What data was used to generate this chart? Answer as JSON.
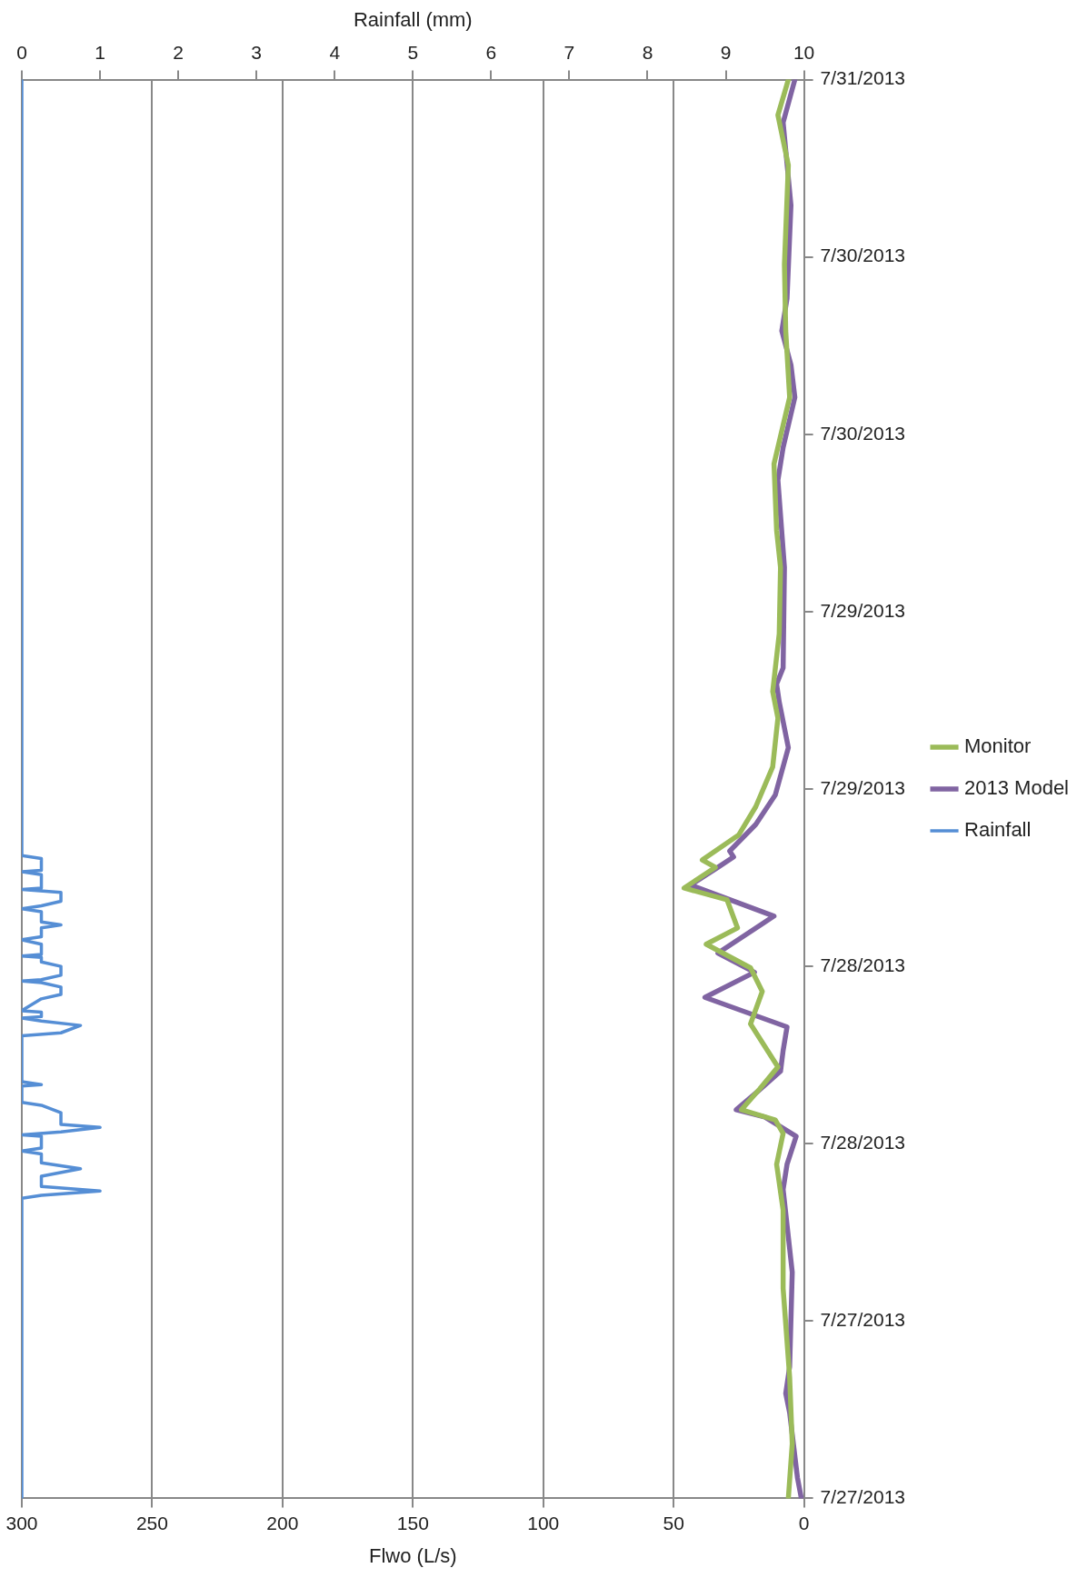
{
  "chart_data": {
    "type": "line",
    "orientation": "horizontal",
    "xlabel": "Flwo (L/s)",
    "x2label": "Rainfall (mm)",
    "ylim": [
      "2013-07-27T00:00",
      "2013-07-31T00:00"
    ],
    "yticks": [
      {
        "value": "2013-07-27T00:00",
        "label": "7/27/2013"
      },
      {
        "value": "2013-07-27T12:00",
        "label": "7/27/2013"
      },
      {
        "value": "2013-07-28T00:00",
        "label": "7/28/2013"
      },
      {
        "value": "2013-07-28T12:00",
        "label": "7/28/2013"
      },
      {
        "value": "2013-07-29T00:00",
        "label": "7/29/2013"
      },
      {
        "value": "2013-07-29T12:00",
        "label": "7/29/2013"
      },
      {
        "value": "2013-07-30T00:00",
        "label": "7/30/2013"
      },
      {
        "value": "2013-07-30T12:00",
        "label": "7/30/2013"
      },
      {
        "value": "2013-07-31T00:00",
        "label": "7/31/2013"
      }
    ],
    "xlim": [
      300,
      0
    ],
    "xticks": [
      300,
      250,
      200,
      150,
      100,
      50,
      0
    ],
    "x2lim": [
      0,
      10
    ],
    "x2ticks": [
      0,
      1,
      2,
      3,
      4,
      5,
      6,
      7,
      8,
      9,
      10
    ],
    "grid": "x",
    "legend": "right",
    "marker": "none",
    "line_style": "solid",
    "series": [
      {
        "name": "Monitor",
        "color": "#9bbb59",
        "x": [
          "2013-07-27T00:00",
          "2013-07-27T03:42",
          "2013-07-27T08:12",
          "2013-07-27T14:12",
          "2013-07-27T19:30",
          "2013-07-27T22:36",
          "2013-07-28T00:42",
          "2013-07-28T01:36",
          "2013-07-28T02:18",
          "2013-07-28T03:42",
          "2013-07-28T05:12",
          "2013-07-28T08:06",
          "2013-07-28T10:18",
          "2013-07-28T11:54",
          "2013-07-28T13:30",
          "2013-07-28T14:36",
          "2013-07-28T16:30",
          "2013-07-28T17:18",
          "2013-07-28T18:42",
          "2013-07-28T19:12",
          "2013-07-28T20:54",
          "2013-07-28T22:48",
          "2013-07-29T01:30",
          "2013-07-29T04:48",
          "2013-07-29T06:36",
          "2013-07-29T10:30",
          "2013-07-29T15:00",
          "2013-07-29T17:30",
          "2013-07-29T22:00",
          "2013-07-30T02:30",
          "2013-07-30T07:00",
          "2013-07-30T11:30",
          "2013-07-30T18:12",
          "2013-07-30T21:36",
          "2013-07-31T00:00"
        ],
        "values": [
          6,
          4.5,
          5.5,
          8,
          8,
          10.5,
          8,
          11,
          24,
          17,
          10,
          20.5,
          16,
          20.5,
          37.5,
          25.5,
          29.5,
          46,
          34,
          39,
          25,
          18.5,
          12,
          10,
          12,
          9.5,
          9,
          10.5,
          11.5,
          5.5,
          7,
          7.5,
          6,
          10,
          6
        ]
      },
      {
        "name": "2013 Model",
        "color": "#8064a2",
        "x": [
          "2013-07-27T00:00",
          "2013-07-27T01:24",
          "2013-07-27T05:48",
          "2013-07-27T07:06",
          "2013-07-27T08:54",
          "2013-07-27T15:18",
          "2013-07-27T20:54",
          "2013-07-27T22:36",
          "2013-07-28T00:30",
          "2013-07-28T01:48",
          "2013-07-28T02:18",
          "2013-07-28T03:30",
          "2013-07-28T04:54",
          "2013-07-28T06:18",
          "2013-07-28T07:54",
          "2013-07-28T09:54",
          "2013-07-28T11:36",
          "2013-07-28T12:54",
          "2013-07-28T15:24",
          "2013-07-28T17:30",
          "2013-07-28T18:42",
          "2013-07-28T19:24",
          "2013-07-28T19:48",
          "2013-07-28T21:36",
          "2013-07-28T23:36",
          "2013-07-29T02:48",
          "2013-07-29T05:54",
          "2013-07-29T07:06",
          "2013-07-29T08:12",
          "2013-07-29T15:00",
          "2013-07-29T20:54",
          "2013-07-29T23:06",
          "2013-07-30T02:30",
          "2013-07-30T04:42",
          "2013-07-30T07:00",
          "2013-07-30T09:12",
          "2013-07-30T15:30",
          "2013-07-30T21:06",
          "2013-07-31T00:00"
        ],
        "values": [
          1,
          2.5,
          5.5,
          7,
          5.5,
          4.5,
          8,
          6.5,
          3,
          15,
          26,
          18,
          9,
          8,
          6.5,
          38,
          19,
          33,
          11.5,
          43.5,
          33,
          27,
          28.5,
          18.5,
          11,
          6,
          9.5,
          10.5,
          8,
          7.5,
          10,
          8,
          3.5,
          5,
          8.5,
          6.5,
          5,
          8,
          3.5
        ]
      },
      {
        "name": "Rainfall",
        "color": "#558ed5",
        "axis": "x2",
        "x": [
          "2013-07-27T00:00",
          "2013-07-27T20:18",
          "2013-07-27T20:30",
          "2013-07-27T20:48",
          "2013-07-27T21:06",
          "2013-07-27T21:24",
          "2013-07-27T21:48",
          "2013-07-27T22:18",
          "2013-07-27T22:42",
          "2013-07-27T23:18",
          "2013-07-27T23:30",
          "2013-07-27T23:42",
          "2013-07-28T00:06",
          "2013-07-28T00:30",
          "2013-07-28T00:36",
          "2013-07-28T00:48",
          "2013-07-28T01:06",
          "2013-07-28T01:18",
          "2013-07-28T01:36",
          "2013-07-28T02:06",
          "2013-07-28T02:36",
          "2013-07-28T02:48",
          "2013-07-28T03:54",
          "2013-07-28T04:00",
          "2013-07-28T04:12",
          "2013-07-28T07:18",
          "2013-07-28T07:30",
          "2013-07-28T08:00",
          "2013-07-28T08:18",
          "2013-07-28T08:30",
          "2013-07-28T08:36",
          "2013-07-28T08:54",
          "2013-07-28T09:00",
          "2013-07-28T09:48",
          "2013-07-28T10:06",
          "2013-07-28T10:36",
          "2013-07-28T10:54",
          "2013-07-28T11:00",
          "2013-07-28T11:06",
          "2013-07-28T11:24",
          "2013-07-28T12:00",
          "2013-07-28T12:18",
          "2013-07-28T12:36",
          "2013-07-28T12:42",
          "2013-07-28T12:48",
          "2013-07-28T13:30",
          "2013-07-28T13:48",
          "2013-07-28T14:00",
          "2013-07-28T14:36",
          "2013-07-28T14:48",
          "2013-07-28T15:00",
          "2013-07-28T15:42",
          "2013-07-28T15:54",
          "2013-07-28T16:06",
          "2013-07-28T16:24",
          "2013-07-28T17:00",
          "2013-07-28T17:12",
          "2013-07-28T17:18",
          "2013-07-28T18:12",
          "2013-07-28T18:24",
          "2013-07-28T18:30",
          "2013-07-28T19:18",
          "2013-07-28T19:30",
          "2013-07-31T00:00"
        ],
        "values": [
          0,
          0,
          0.25,
          1,
          0.25,
          0.25,
          0.25,
          0.75,
          0.25,
          0.25,
          0,
          0.25,
          0.25,
          0.25,
          0,
          0.5,
          1,
          0.5,
          0.5,
          0.5,
          0.25,
          0,
          0,
          0.25,
          0,
          0,
          0.5,
          0.75,
          0.25,
          0,
          0.25,
          0.25,
          0,
          0.25,
          0.5,
          0.5,
          0.25,
          0,
          0.25,
          0.5,
          0.5,
          0.25,
          0.25,
          0,
          0.25,
          0.25,
          0,
          0.25,
          0.25,
          0.5,
          0.25,
          0.25,
          0,
          0.25,
          0.5,
          0.5,
          0,
          0.25,
          0.25,
          0,
          0.25,
          0.25,
          0,
          0
        ]
      }
    ]
  }
}
